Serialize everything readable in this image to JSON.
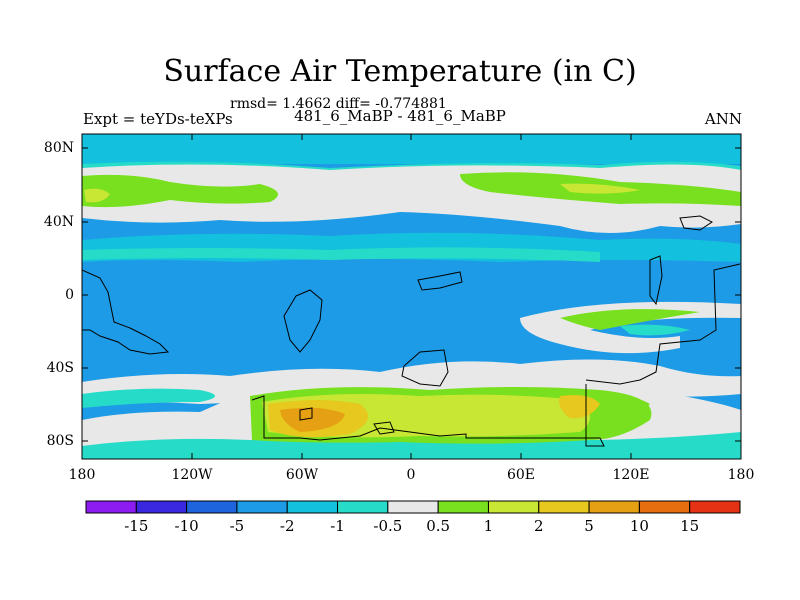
{
  "title": "Surface Air Temperature (in C)",
  "stats": "rmsd= 1.4662 diff= -0.774881",
  "subtitle": "481_6_MaBP - 481_6_MaBP",
  "left_label": "Expt = teYDs-teXPs",
  "right_label": "ANN",
  "y_ticks": [
    "80N",
    "40N",
    "0",
    "40S",
    "80S"
  ],
  "x_ticks": [
    "180",
    "120W",
    "60W",
    "0",
    "60E",
    "120E",
    "180"
  ],
  "colorbar": {
    "colors": [
      "#8c1cf0",
      "#3a28e0",
      "#1e64dc",
      "#1e9be6",
      "#13c0de",
      "#26dcc8",
      "#e8e8e8",
      "#78e01e",
      "#c8e634",
      "#e6c81e",
      "#e6a014",
      "#e66e0e",
      "#e63214"
    ],
    "labels": [
      "-15",
      "-10",
      "-5",
      "-2",
      "-1",
      "-0.5",
      "0.5",
      "1",
      "2",
      "5",
      "10",
      "15"
    ]
  }
}
